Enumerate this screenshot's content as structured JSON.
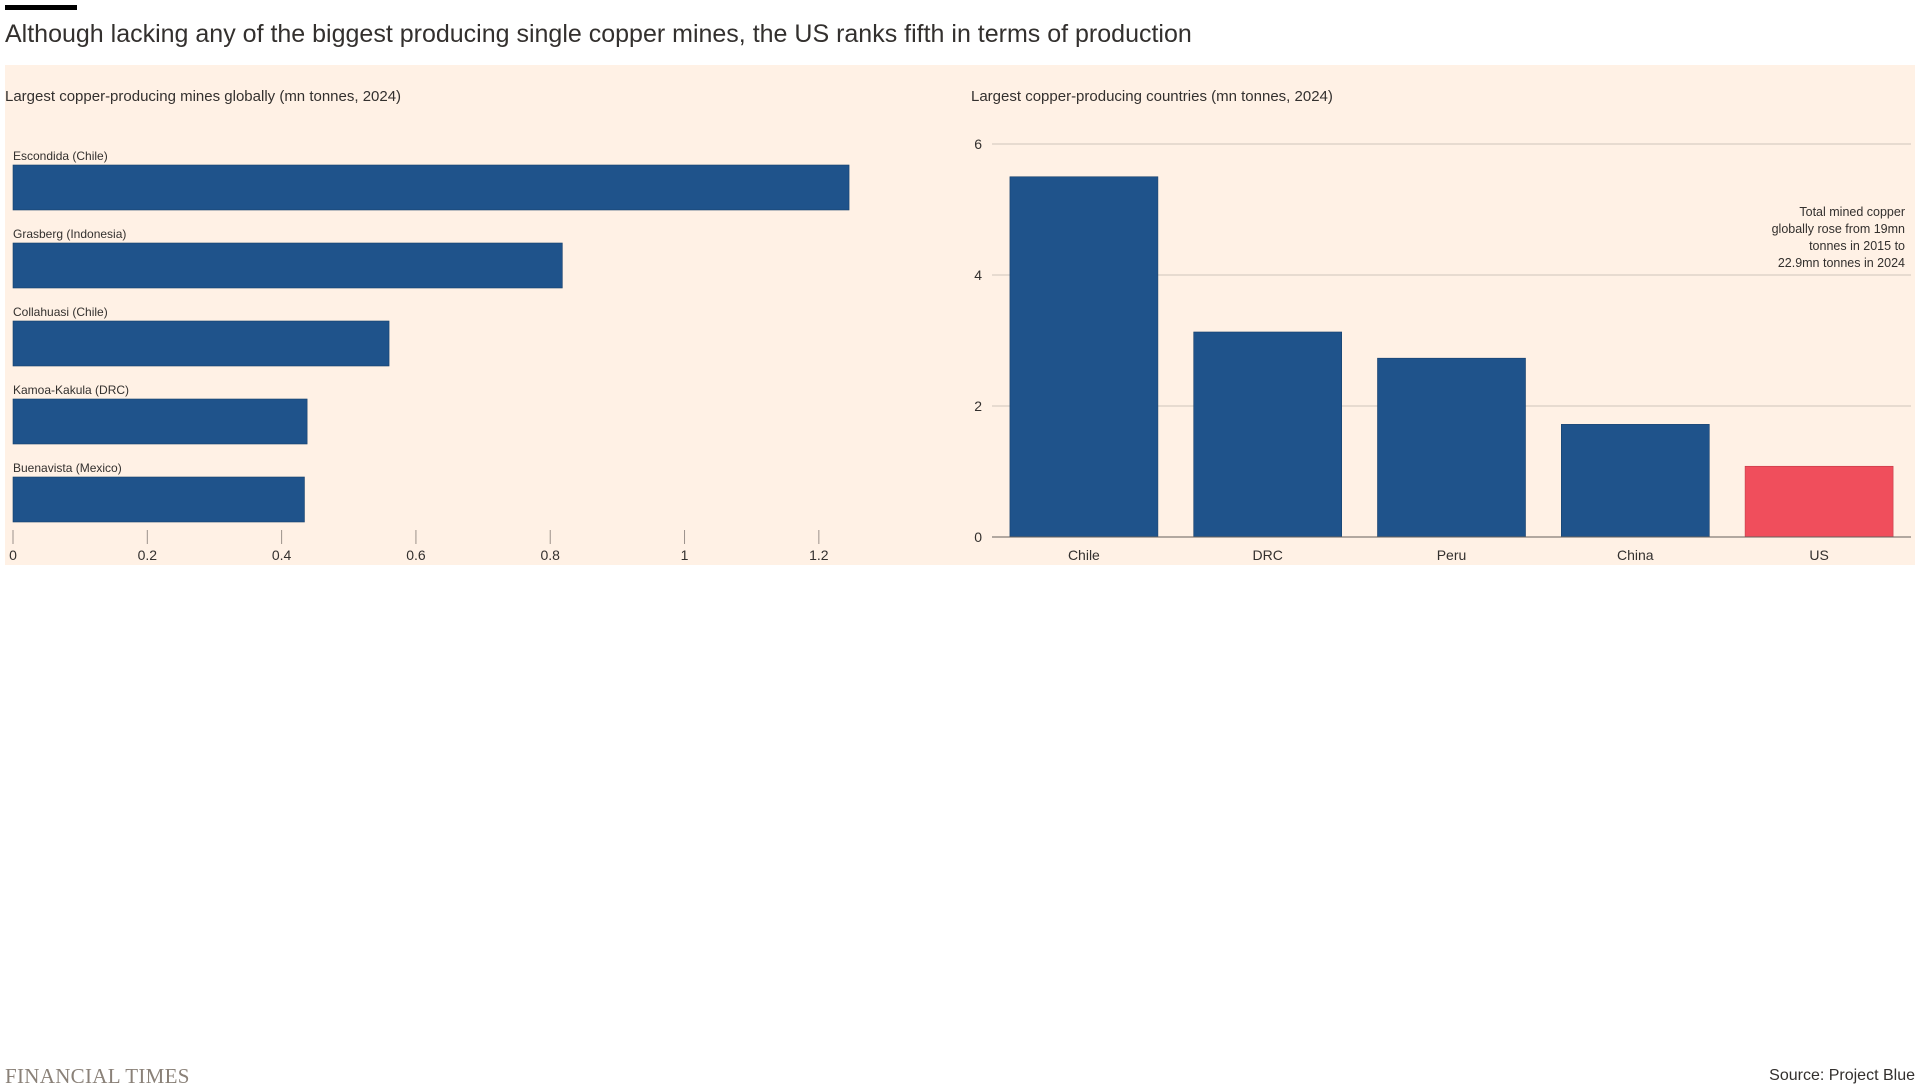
{
  "title": "Although lacking any of the biggest producing single copper mines, the US ranks fifth in terms of production",
  "source": "Source: Project Blue",
  "logo": "FINANCIAL TIMES",
  "colors": {
    "panel_bg": "#fff1e5",
    "bar": "#1f538b",
    "highlight": "#f04e5c",
    "grid": "#cfc5bb",
    "axis": "#66605c",
    "text": "#33302e"
  },
  "chart_data": [
    {
      "type": "bar",
      "orientation": "horizontal",
      "title": "Largest copper-producing mines globally (mn tonnes, 2024)",
      "categories": [
        "Escondida (Chile)",
        "Grasberg (Indonesia)",
        "Collahuasi (Chile)",
        "Kamoa-Kakula (DRC)",
        "Buenavista (Mexico)"
      ],
      "values": [
        1.245,
        0.818,
        0.56,
        0.438,
        0.434
      ],
      "xlim": [
        0,
        1.3
      ],
      "ticks": [
        0,
        0.2,
        0.4,
        0.6,
        0.8,
        1,
        1.2
      ],
      "tick_labels": [
        "0",
        "0.2",
        "0.4",
        "0.6",
        "0.8",
        "1",
        "1.2"
      ],
      "xlabel": "",
      "ylabel": ""
    },
    {
      "type": "bar",
      "orientation": "vertical",
      "title": "Largest copper-producing countries (mn tonnes, 2024)",
      "categories": [
        "Chile",
        "DRC",
        "Peru",
        "China",
        "US"
      ],
      "values": [
        5.5,
        3.13,
        2.73,
        1.72,
        1.08
      ],
      "highlight": "US",
      "ylim": [
        0,
        6
      ],
      "ticks": [
        0,
        2,
        4,
        6
      ],
      "tick_labels": [
        "0",
        "2",
        "4",
        "6"
      ],
      "grid": true,
      "annotation": "Total mined copper globally rose from 19mn tonnes in 2015 to 22.9mn tonnes in 2024",
      "annotation_lines": [
        "Total mined copper",
        "globally rose from 19mn",
        "tonnes in 2015 to",
        "22.9mn tonnes in 2024"
      ],
      "xlabel": "",
      "ylabel": ""
    }
  ]
}
